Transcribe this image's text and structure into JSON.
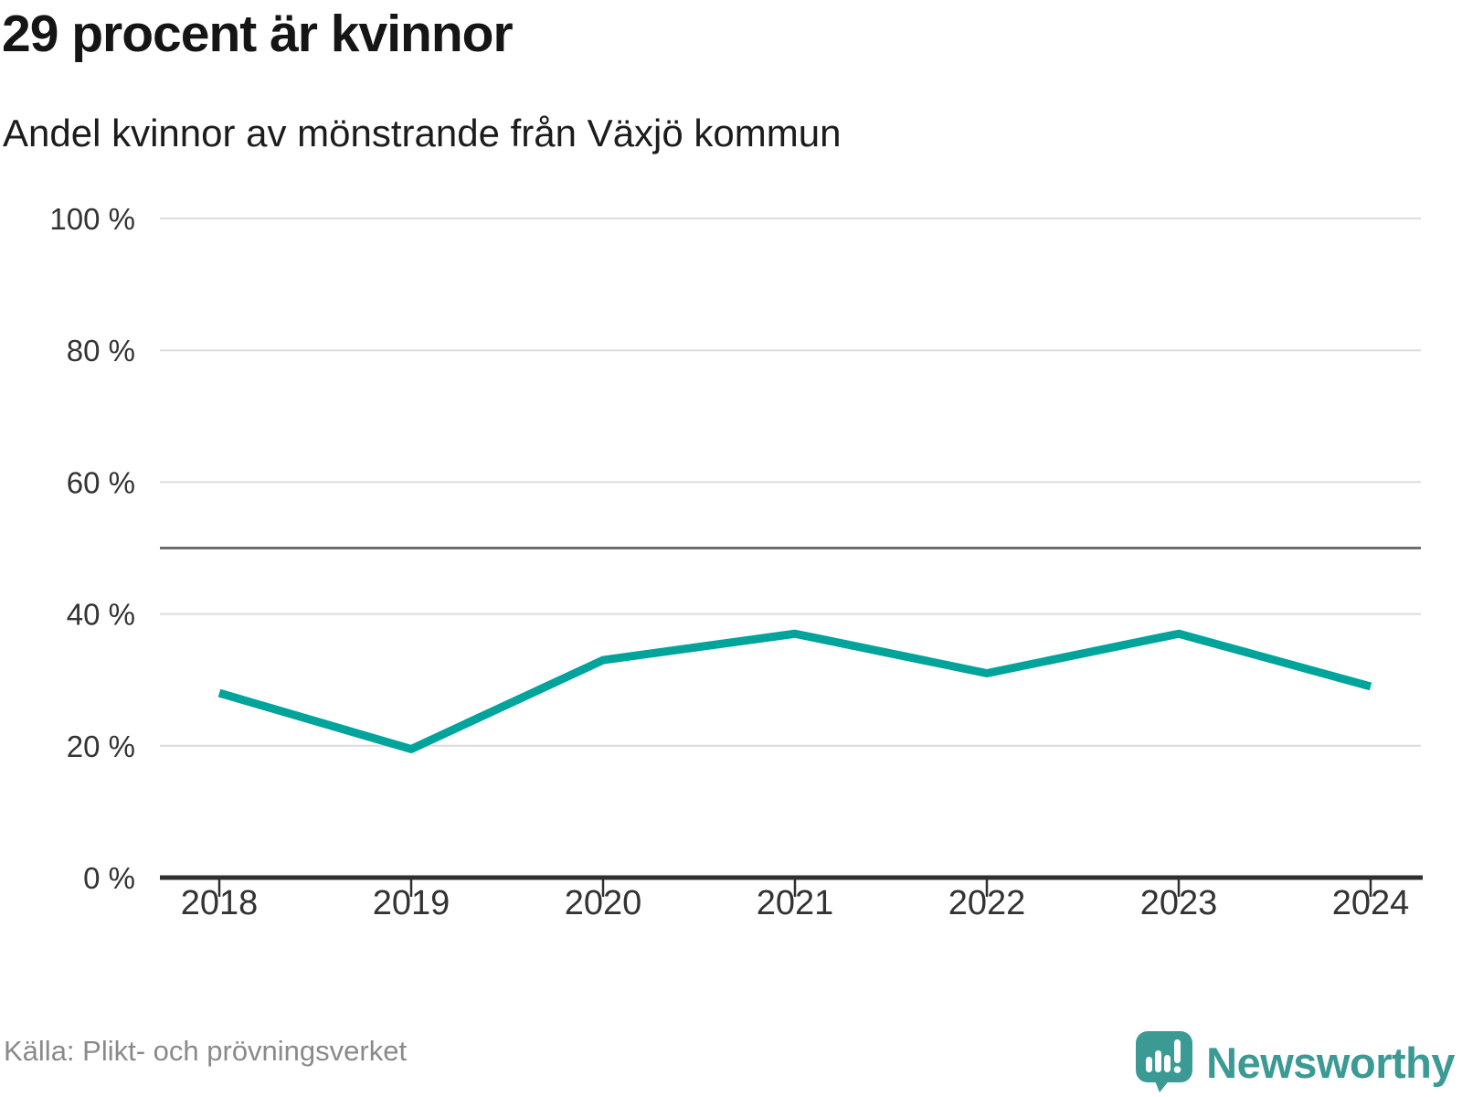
{
  "header": {
    "title": "29 procent är kvinnor",
    "subtitle": "Andel kvinnor av mönstrande från Växjö kommun"
  },
  "footer": {
    "source": "Källa: Plikt- och prövningsverket",
    "brand": "Newsworthy",
    "brand_color": "#3b9b94"
  },
  "chart_data": {
    "type": "line",
    "title": "29 procent är kvinnor",
    "subtitle": "Andel kvinnor av mönstrande från Växjö kommun",
    "source": "Källa: Plikt- och prövningsverket",
    "x": [
      "2018",
      "2019",
      "2020",
      "2021",
      "2022",
      "2023",
      "2024"
    ],
    "series": [
      {
        "name": "Andel kvinnor av mönstrande",
        "values": [
          28,
          19.5,
          33,
          37,
          31,
          37,
          29
        ]
      }
    ],
    "unit": "%",
    "ylim": [
      0,
      100
    ],
    "yticks": [
      0,
      20,
      40,
      60,
      80,
      100
    ],
    "ytick_labels": [
      "0 %",
      "20 %",
      "40 %",
      "60 %",
      "80 %",
      "100 %"
    ],
    "reference_line": 50,
    "grid": true,
    "legend": "none",
    "colors": {
      "line": "#00a49b",
      "grid": "#dcdcdc",
      "axis": "#2f2f2f",
      "reference": "#6e6e6e",
      "tick_text": "#333333"
    }
  }
}
